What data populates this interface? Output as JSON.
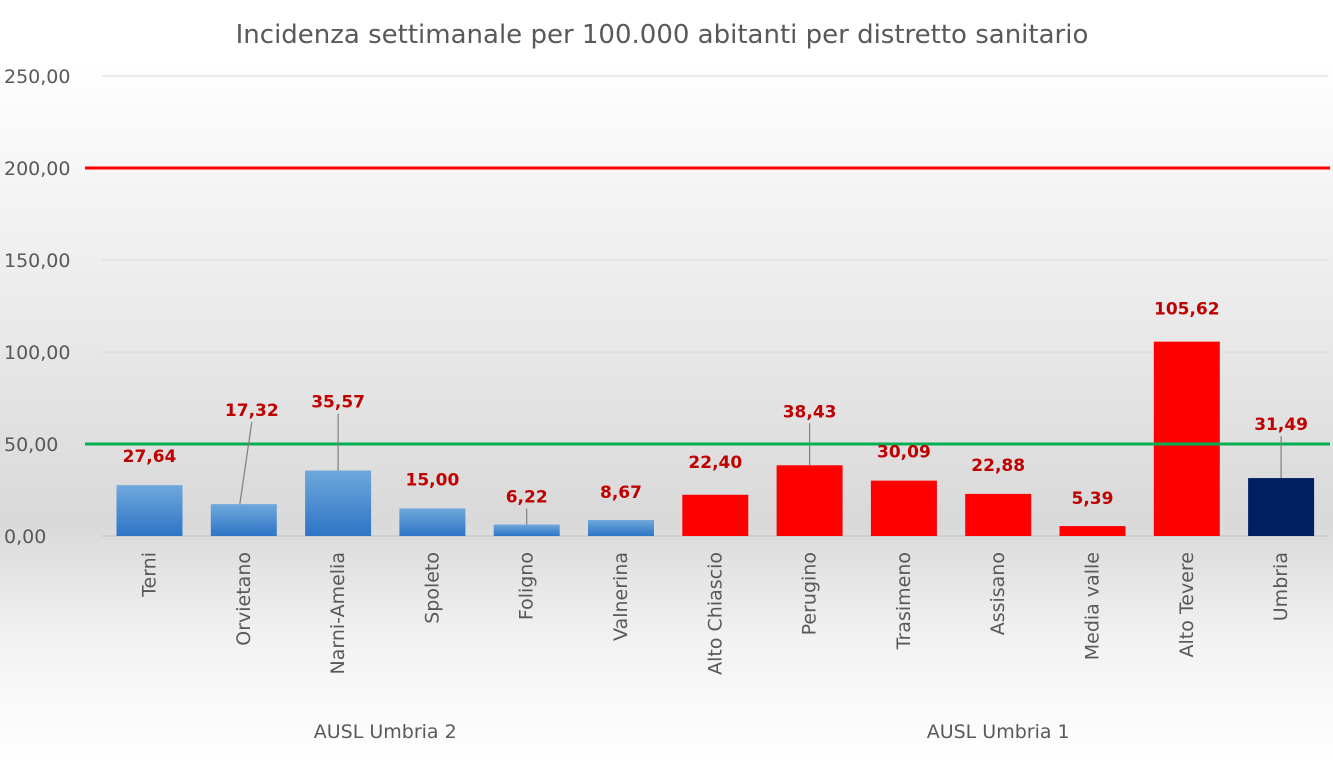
{
  "chart_data": {
    "type": "bar",
    "title": "Incidenza settimanale per 100.000 abitanti per distretto sanitario",
    "categories": [
      "Terni",
      "Orvietano",
      "Narni-Amelia",
      "Spoleto",
      "Foligno",
      "Valnerina",
      "Alto Chiascio",
      "Perugino",
      "Trasimeno",
      "Assisano",
      "Media valle",
      "Alto Tevere",
      "Umbria"
    ],
    "values": [
      27.64,
      17.32,
      35.57,
      15.0,
      6.22,
      8.67,
      22.4,
      38.43,
      30.09,
      22.88,
      5.39,
      105.62,
      31.49
    ],
    "value_labels": [
      "27,64",
      "17,32",
      "35,57",
      "15,00",
      "6,22",
      "8,67",
      "22,40",
      "38,43",
      "30,09",
      "22,88",
      "5,39",
      "105,62",
      "31,49"
    ],
    "bar_colors": [
      "#5b9bd5",
      "#5b9bd5",
      "#5b9bd5",
      "#5b9bd5",
      "#5b9bd5",
      "#5b9bd5",
      "#ff0000",
      "#ff0000",
      "#ff0000",
      "#ff0000",
      "#ff0000",
      "#ff0000",
      "#002060"
    ],
    "groups": [
      {
        "label": "AUSL Umbria 2",
        "start": 0,
        "end": 5
      },
      {
        "label": "AUSL Umbria 1",
        "start": 6,
        "end": 12
      }
    ],
    "ylim": [
      0,
      250
    ],
    "yticks": [
      0,
      50,
      100,
      150,
      200,
      250
    ],
    "ytick_labels": [
      "0,00",
      "50,00",
      "100,00",
      "150,00",
      "200,00",
      "250,00"
    ],
    "reference_lines": [
      {
        "value": 200,
        "color": "#ff0000"
      },
      {
        "value": 50,
        "color": "#00b050"
      }
    ],
    "label_color": "#c00000",
    "grid": true,
    "legend": "none"
  }
}
